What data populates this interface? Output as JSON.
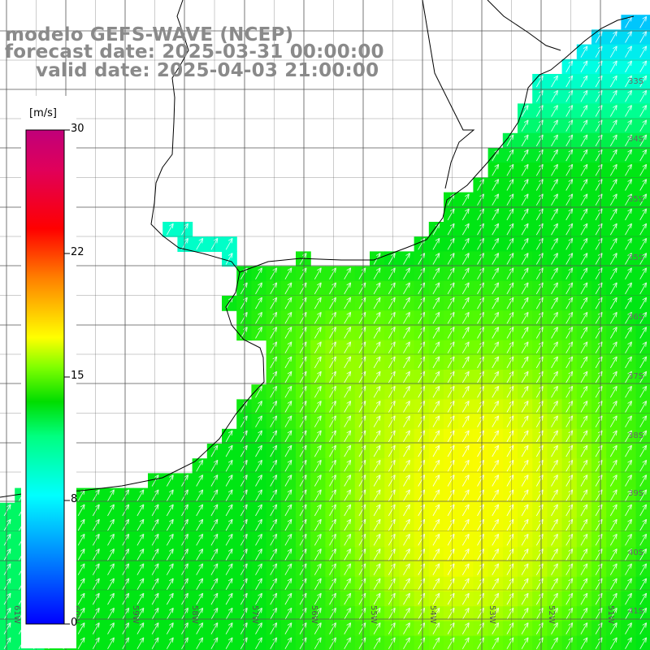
{
  "title": {
    "model": "modelo GEFS-WAVE (NCEP)",
    "forecast": "forecast date: 2025-03-31 00:00:00",
    "valid": "valid date: 2025-04-03 21:00:00"
  },
  "colorbar": {
    "unit": "[m/s]",
    "ticks": [
      "30",
      "22",
      "15",
      "8",
      "0"
    ],
    "colors": [
      "#0000ff",
      "#0080ff",
      "#00ffff",
      "#00ff80",
      "#00dd00",
      "#80ff00",
      "#ffff00",
      "#ff8000",
      "#ff0000",
      "#e0005a",
      "#c0007a"
    ]
  },
  "lon_labels": [
    "61W",
    "60W",
    "59W",
    "58W",
    "57W",
    "56W",
    "55W",
    "54W",
    "53W",
    "52W",
    "51W"
  ],
  "lat_labels": [
    "33S",
    "33S",
    "34S",
    "35S",
    "35S",
    "36S",
    "37S",
    "38S",
    "39S",
    "40S",
    "41S"
  ],
  "colors": {
    "land": "#ffffff",
    "coast": "#000000",
    "grid": "#555555",
    "title": "#8a8a8a",
    "arrow": "#ffffff"
  },
  "wind_direction": "southwest"
}
